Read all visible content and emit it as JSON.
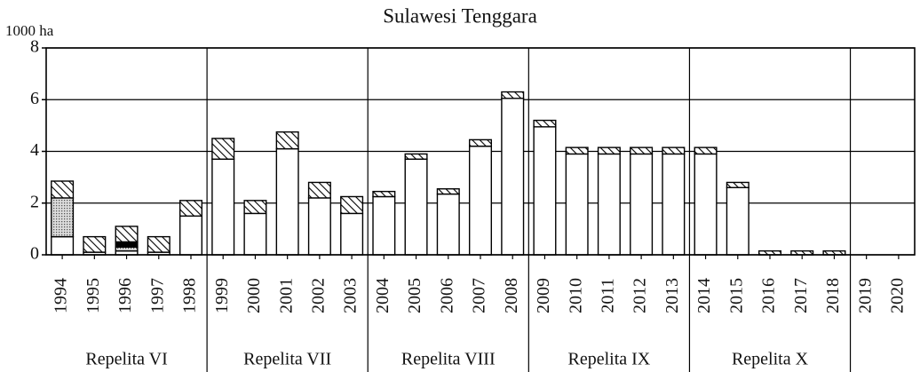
{
  "chart_data": {
    "type": "stacked_bar",
    "title": "Sulawesi Tenggara",
    "y_label": "1000 ha",
    "categories": [
      "1994",
      "1995",
      "1996",
      "1997",
      "1998",
      "1999",
      "2000",
      "2001",
      "2002",
      "2003",
      "2004",
      "2005",
      "2006",
      "2007",
      "2008",
      "2009",
      "2010",
      "2011",
      "2012",
      "2013",
      "2014",
      "2015",
      "2016",
      "2017",
      "2018",
      "2019",
      "2020"
    ],
    "series": [
      {
        "color": "#ffffff",
        "pattern": "solid",
        "values": [
          0.7,
          0.1,
          0.15,
          0.1,
          1.5,
          3.7,
          1.6,
          4.1,
          2.2,
          1.6,
          2.25,
          3.7,
          2.35,
          4.2,
          6.05,
          4.95,
          3.9,
          3.9,
          3.9,
          3.9,
          3.9,
          2.6,
          0,
          0,
          0,
          0,
          0
        ]
      },
      {
        "color": "#999999",
        "pattern": "dots",
        "values": [
          1.5,
          0,
          0.15,
          0,
          0,
          0,
          0,
          0,
          0,
          0,
          0,
          0,
          0,
          0,
          0,
          0,
          0,
          0,
          0,
          0,
          0,
          0,
          0,
          0,
          0,
          0,
          0
        ]
      },
      {
        "color": "#000000",
        "pattern": "solid",
        "values": [
          0,
          0,
          0.2,
          0,
          0,
          0,
          0,
          0,
          0,
          0,
          0,
          0,
          0,
          0,
          0,
          0,
          0,
          0,
          0,
          0,
          0,
          0,
          0,
          0,
          0,
          0,
          0
        ]
      },
      {
        "color": "#000000",
        "pattern": "hatch",
        "values": [
          0.65,
          0.6,
          0.6,
          0.6,
          0.6,
          0.8,
          0.5,
          0.65,
          0.6,
          0.65,
          0.2,
          0.2,
          0.2,
          0.25,
          0.25,
          0.25,
          0.25,
          0.25,
          0.25,
          0.25,
          0.25,
          0.2,
          0.15,
          0.15,
          0.15,
          0,
          0
        ]
      }
    ],
    "groups": [
      {
        "label": "Repelita VI",
        "from": "1994",
        "to": "1998"
      },
      {
        "label": "Repelita VII",
        "from": "1999",
        "to": "2003"
      },
      {
        "label": "Repelita VIII",
        "from": "2004",
        "to": "2008"
      },
      {
        "label": "Repelita IX",
        "from": "2009",
        "to": "2013"
      },
      {
        "label": "Repelita X",
        "from": "2014",
        "to": "2018"
      }
    ],
    "ylim": [
      0,
      8
    ],
    "yticks": [
      0,
      2,
      4,
      6,
      8
    ],
    "grid": true
  }
}
